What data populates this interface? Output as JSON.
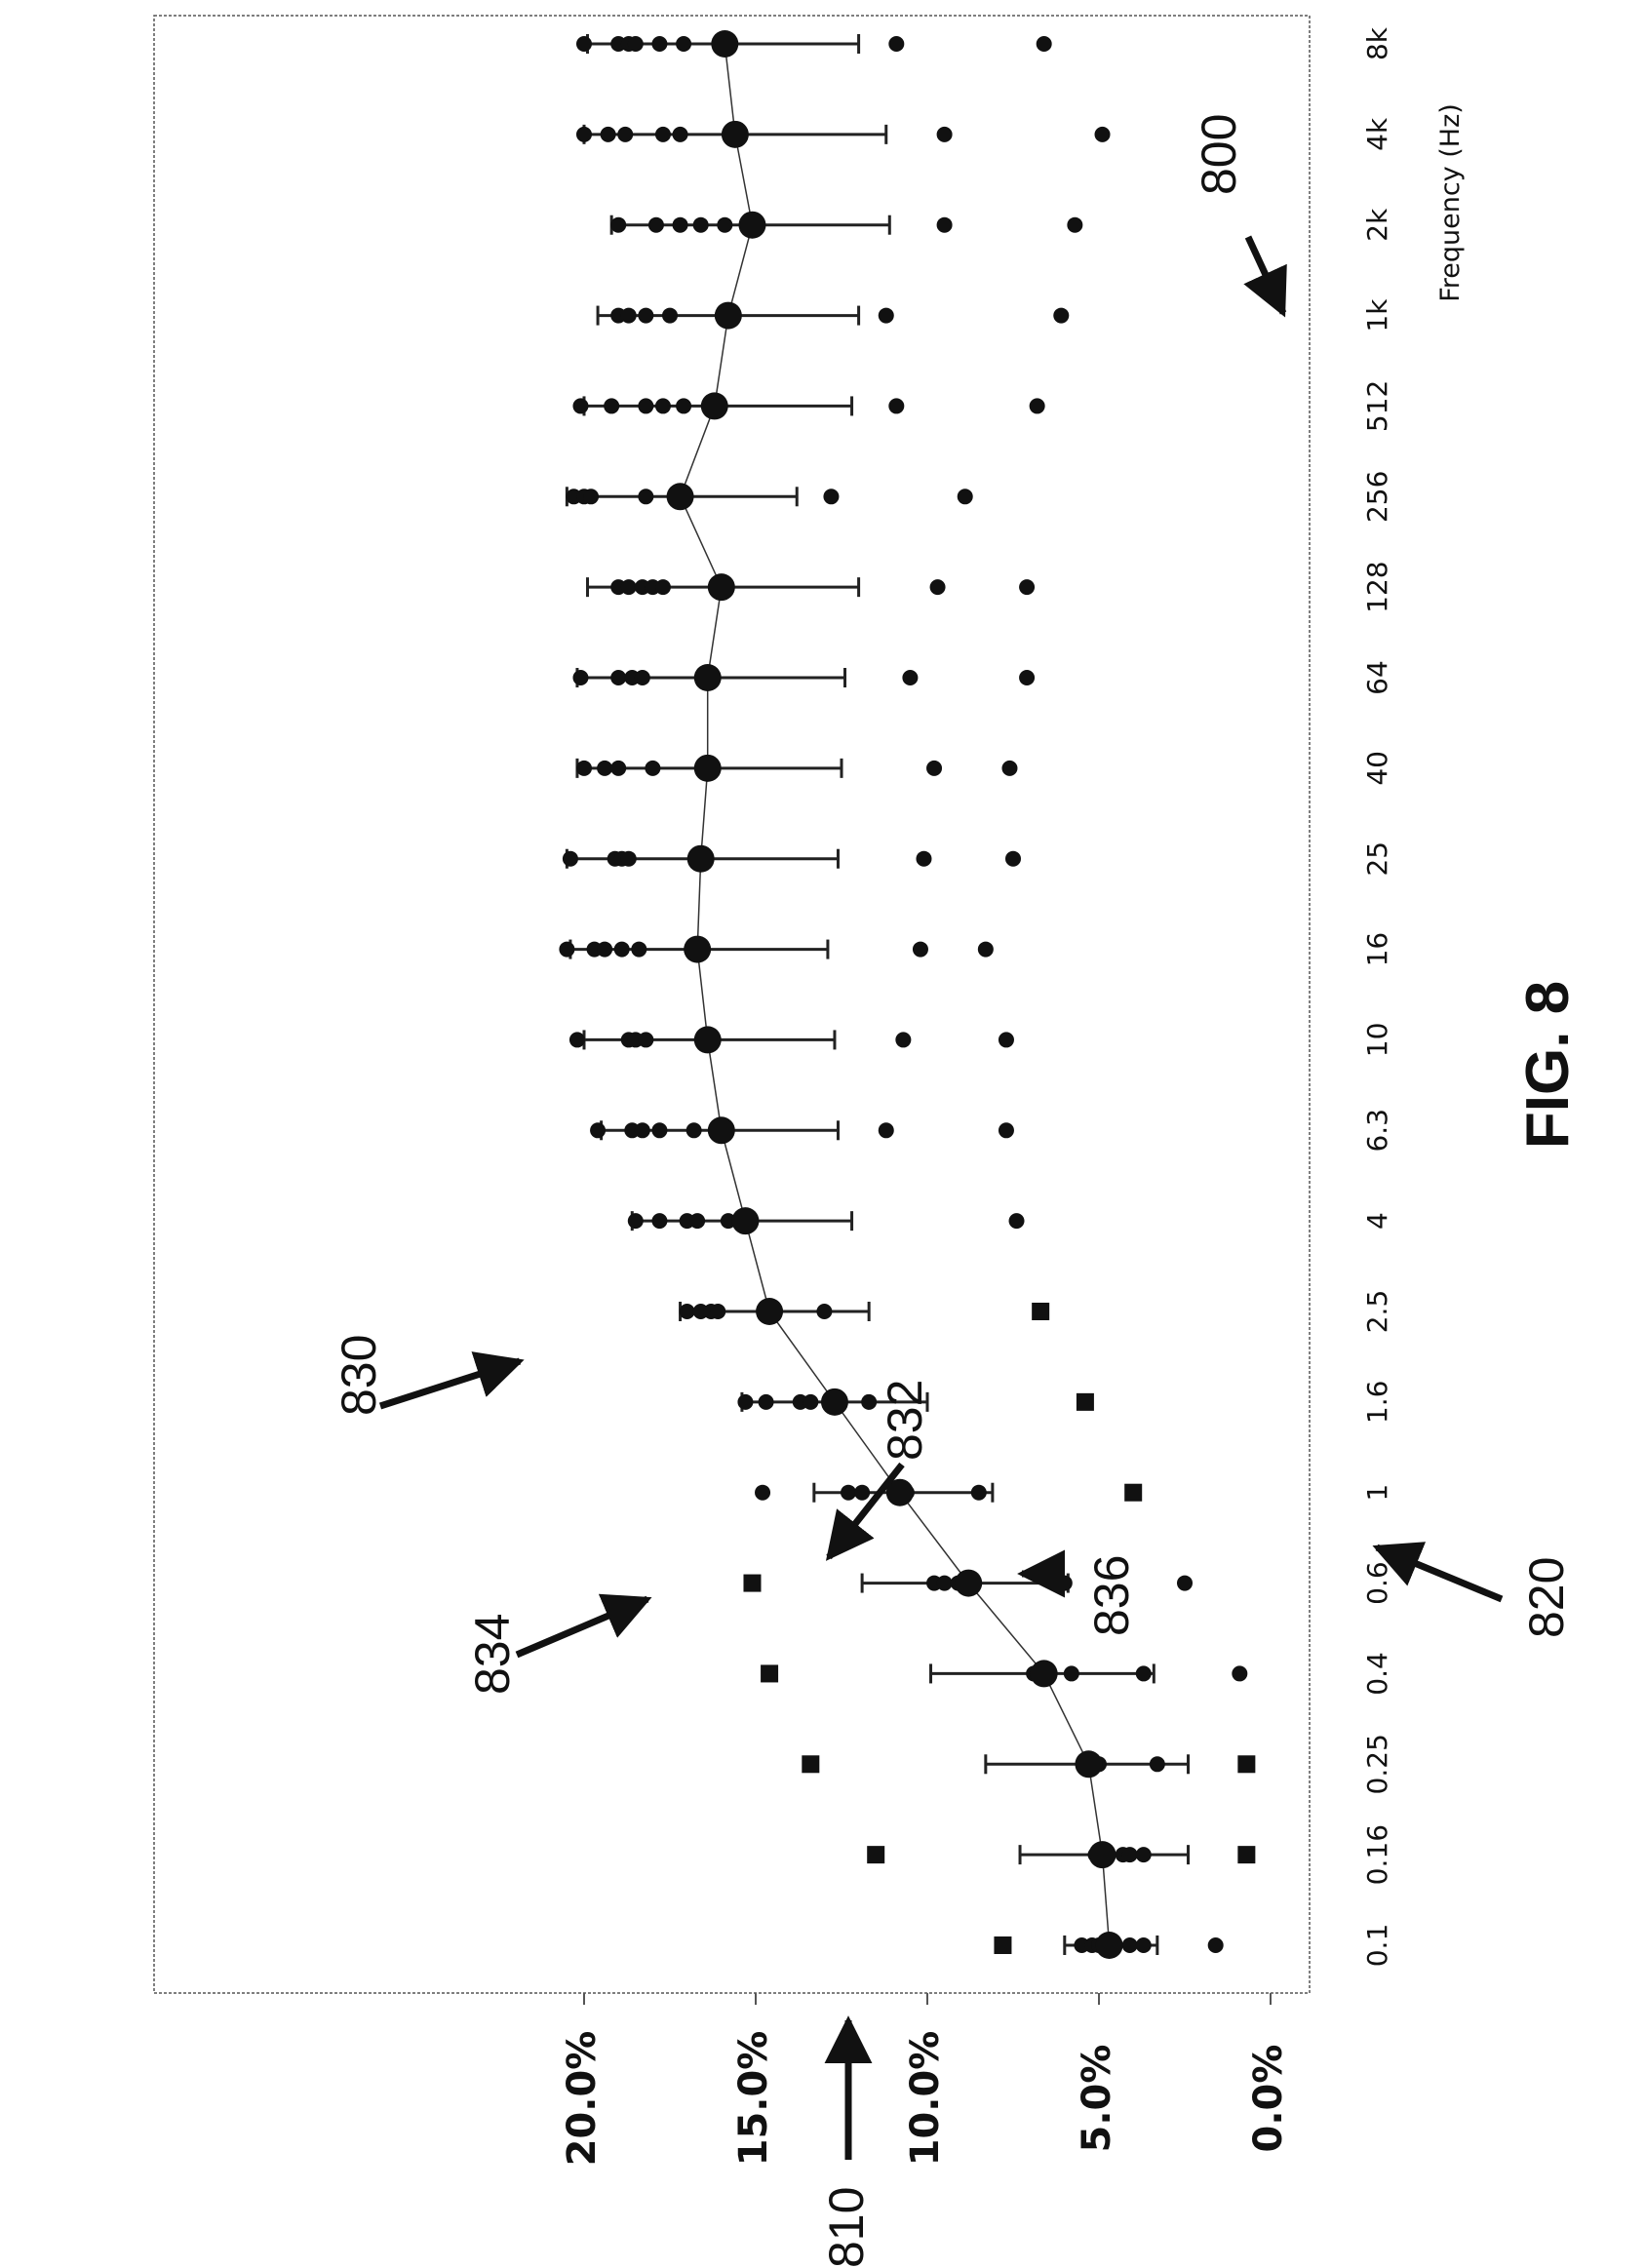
{
  "figure_label": "FIG. 8",
  "reference_numerals": {
    "figure": "800",
    "y_axis": "810",
    "x_axis": "820",
    "mean_curve": "830",
    "mean_point": "832",
    "error_bar": "834",
    "outlier": "836"
  },
  "chart_data": {
    "type": "scatter",
    "orientation": "rotated-90-counterclockwise",
    "title": "",
    "xlabel": "Frequency (Hz)",
    "ylabel": "",
    "categories": [
      "0.1",
      "0.16",
      "0.25",
      "0.4",
      "0.6",
      "1",
      "1.6",
      "2.5",
      "4",
      "6.3",
      "10",
      "16",
      "25",
      "40",
      "64",
      "128",
      "256",
      "512",
      "1k",
      "2k",
      "4k",
      "8k"
    ],
    "y_ticks": [
      "0.0%",
      "5.0%",
      "10.0%",
      "15.0%",
      "20.0%"
    ],
    "ylim": [
      0,
      21
    ],
    "grid": false,
    "legend": "none",
    "series": [
      {
        "role": "mean",
        "values": [
          4.7,
          4.9,
          5.3,
          6.6,
          8.8,
          10.8,
          12.7,
          14.6,
          15.3,
          16.0,
          16.4,
          16.7,
          16.6,
          16.4,
          16.4,
          16.0,
          17.2,
          16.2,
          15.8,
          15.1,
          15.6,
          15.9
        ]
      },
      {
        "role": "error-upper",
        "values": [
          6.0,
          7.3,
          8.3,
          9.9,
          11.9,
          13.3,
          15.4,
          17.2,
          18.6,
          19.5,
          20.0,
          20.4,
          20.5,
          20.2,
          20.2,
          19.9,
          20.5,
          20.0,
          19.6,
          19.2,
          20.0,
          19.9
        ]
      },
      {
        "role": "error-lower",
        "values": [
          3.3,
          2.4,
          2.4,
          3.4,
          5.9,
          8.1,
          10.0,
          11.7,
          12.2,
          12.6,
          12.7,
          12.9,
          12.6,
          12.5,
          12.4,
          12.0,
          13.8,
          12.2,
          12.0,
          11.1,
          11.2,
          12.0
        ]
      },
      {
        "role": "individual-points",
        "values": [
          [
            5.5,
            5.2,
            5.0,
            4.6,
            4.1,
            3.7,
            1.6
          ],
          [
            5.1,
            5.0,
            4.3,
            4.1,
            3.7
          ],
          [
            5.4,
            5.2,
            5.1,
            5.0,
            3.3
          ],
          [
            6.9,
            6.8,
            6.7,
            5.8,
            3.7,
            0.9
          ],
          [
            9.8,
            9.5,
            9.1,
            6.0,
            2.5
          ],
          [
            14.8,
            12.3,
            11.9,
            10.9,
            10.6,
            8.5
          ],
          [
            15.3,
            14.7,
            13.7,
            13.4,
            11.7
          ],
          [
            17.0,
            16.6,
            16.3,
            16.1,
            13.0
          ],
          [
            18.5,
            17.8,
            17.0,
            16.7,
            15.8,
            7.4
          ],
          [
            19.6,
            18.6,
            18.3,
            17.8,
            16.8,
            11.2,
            7.7
          ],
          [
            20.2,
            18.7,
            18.5,
            18.2,
            10.7,
            7.7
          ],
          [
            20.5,
            19.7,
            19.4,
            18.9,
            18.4,
            10.2,
            8.3
          ],
          [
            20.4,
            19.1,
            18.9,
            18.7,
            10.1,
            7.5
          ],
          [
            20.0,
            19.4,
            19.0,
            18.0,
            9.8,
            7.6
          ],
          [
            20.1,
            19.0,
            18.6,
            18.3,
            10.5,
            7.1
          ],
          [
            19.0,
            18.7,
            18.3,
            18.0,
            17.7,
            9.7,
            7.1
          ],
          [
            20.3,
            20.0,
            19.8,
            18.2,
            12.8,
            8.9
          ],
          [
            20.1,
            19.2,
            18.2,
            17.7,
            17.1,
            10.9,
            6.8
          ],
          [
            19.0,
            18.7,
            18.2,
            17.5,
            11.2,
            6.1
          ],
          [
            19.0,
            17.9,
            17.2,
            16.6,
            15.9,
            9.5,
            5.7
          ],
          [
            20.0,
            19.3,
            18.8,
            17.7,
            17.2,
            9.5,
            4.9
          ],
          [
            20.0,
            19.0,
            18.7,
            18.5,
            17.8,
            17.1,
            10.9,
            6.6
          ]
        ]
      },
      {
        "role": "square-markers",
        "category_indices": [
          0,
          1,
          2,
          3,
          4,
          5,
          6,
          7
        ],
        "values": [
          7.8,
          11.5,
          13.4,
          14.6,
          15.1,
          4.0,
          5.4,
          6.7
        ],
        "low_values": [
          0.7,
          0.7
        ]
      }
    ]
  }
}
